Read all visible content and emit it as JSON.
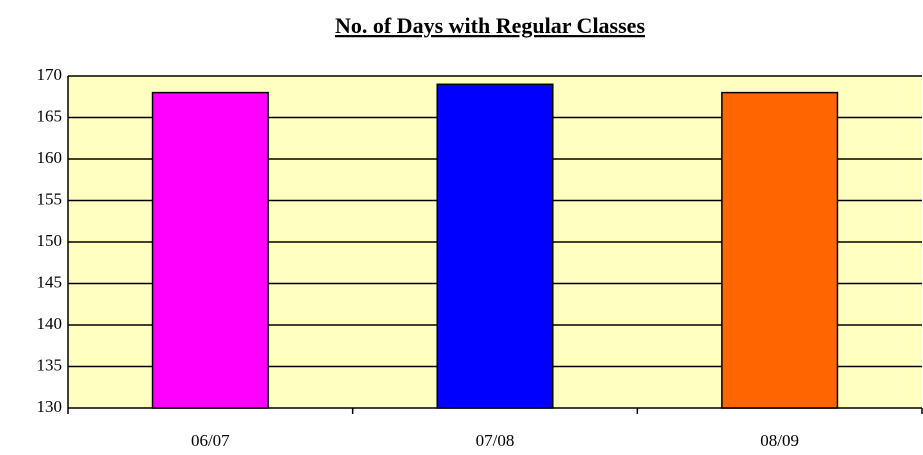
{
  "chart_data": {
    "type": "bar",
    "title": "No. of Days with Regular Classes",
    "categories": [
      "06/07",
      "07/08",
      "08/09"
    ],
    "values": [
      168,
      169,
      168
    ],
    "colors": [
      "#ff00ff",
      "#0000ff",
      "#ff6600"
    ],
    "ylim": [
      130,
      170
    ],
    "yticks": [
      130,
      135,
      140,
      145,
      150,
      155,
      160,
      165,
      170
    ],
    "grid": true,
    "background": "#ffffc0"
  }
}
